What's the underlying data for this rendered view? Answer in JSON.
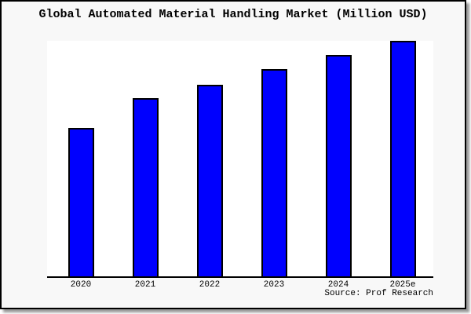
{
  "window": {
    "background": "#f8f8f8",
    "border_color": "#000000",
    "shadow_color": "#999999"
  },
  "chart": {
    "title": "Global Automated Material Handling Market (Million USD)",
    "source": "Source: Prof Research"
  },
  "chart_data": {
    "type": "bar",
    "title": "Global Automated Material Handling Market (Million USD)",
    "categories": [
      "2020",
      "2021",
      "2022",
      "2023",
      "2024",
      "2025e"
    ],
    "values": [
      63,
      75.5,
      81.5,
      88,
      94,
      100
    ],
    "values_note": "no y-axis scale shown in image; values estimated as percent of tallest bar",
    "xlabel": "",
    "ylabel": "",
    "ylim": [
      0,
      100
    ],
    "grid": false,
    "legend": false,
    "bar_color": "#0000fe",
    "bar_border_color": "#000000",
    "plot_background": "#ffffff",
    "annotation": "Source: Prof Research"
  }
}
